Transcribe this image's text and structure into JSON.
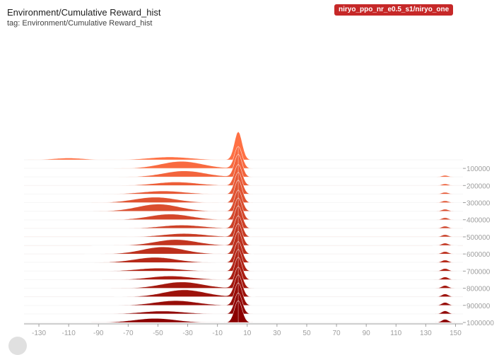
{
  "card": {
    "title": "Environment/Cumulative Reward_hist",
    "tag": "tag: Environment/Cumulative Reward_hist",
    "run_label": "niryo_ppo_nr_e0.5_s1/niryo_one"
  },
  "chart_data": {
    "type": "histogram-offset",
    "x_axis": {
      "range": [
        -140,
        155
      ],
      "ticks": [
        -130,
        -110,
        -90,
        -70,
        -50,
        -30,
        -10,
        10,
        30,
        50,
        70,
        90,
        110,
        130,
        150
      ]
    },
    "steps": {
      "labeled_ticks": [
        100000,
        200000,
        300000,
        400000,
        500000,
        600000,
        700000,
        800000,
        900000,
        1000000
      ],
      "tick_labels": [
        "100000",
        "200000",
        "300000",
        "400000",
        "500000",
        "600000",
        "700000",
        "800000",
        "900000",
        "1000000"
      ]
    },
    "peak_center": 4,
    "colors": {
      "first": "#ff7043",
      "last": "#8b0000",
      "axis": "#9e9e9e",
      "grid": "#eeeeee"
    }
  }
}
